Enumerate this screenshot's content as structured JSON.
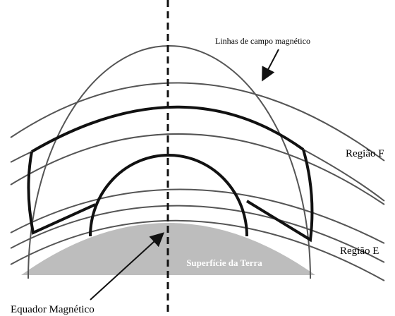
{
  "labels": {
    "field_lines": "Linhas de campo magnético",
    "region_f": "Região F",
    "region_e": "Região E",
    "earth_surface": "Superfície da Terra",
    "magnetic_equator": "Equador Magnético"
  }
}
